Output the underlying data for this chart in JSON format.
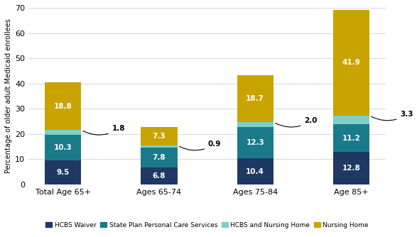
{
  "categories": [
    "Total Age 65+",
    "Ages 65-74",
    "Ages 75-84",
    "Age 85+"
  ],
  "series": {
    "HCBS Waiver": [
      9.5,
      6.8,
      10.4,
      12.8
    ],
    "State Plan Personal Care Services": [
      10.3,
      7.8,
      12.3,
      11.2
    ],
    "HCBS and Nursing Home": [
      1.8,
      0.9,
      2.0,
      3.3
    ],
    "Nursing Home": [
      18.8,
      7.3,
      18.7,
      41.9
    ]
  },
  "colors": {
    "HCBS Waiver": "#1F3864",
    "State Plan Personal Care Services": "#1A7A8A",
    "HCBS and Nursing Home": "#7ECECA",
    "Nursing Home": "#C8A400"
  },
  "ylabel": "Percentage of older adult Medicaid enrollees",
  "ylim": [
    0,
    70
  ],
  "yticks": [
    0,
    10,
    20,
    30,
    40,
    50,
    60,
    70
  ],
  "background_color": "#ffffff",
  "grid_color": "#d0d0d0",
  "bar_width": 0.38
}
